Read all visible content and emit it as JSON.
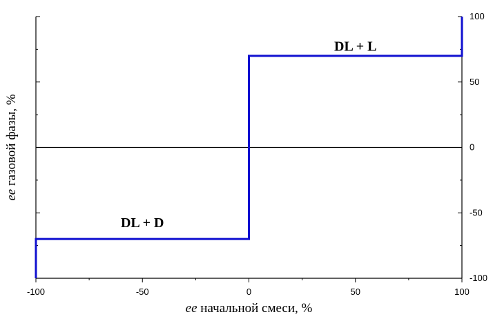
{
  "chart_data": {
    "type": "line",
    "xlabel": {
      "italic": "ee",
      "rest": " начальной смеси, %"
    },
    "ylabel": {
      "italic": "ee",
      "rest": " газовой фазы, %"
    },
    "xlim": [
      -100,
      100
    ],
    "ylim": [
      -100,
      100
    ],
    "x_ticks": [
      "-100",
      "-50",
      "0",
      "50",
      "100"
    ],
    "y_ticks": [
      "-100",
      "-50",
      "0",
      "50",
      "100"
    ],
    "y_axis_side": "right",
    "grid": false,
    "zero_line": true,
    "series": [
      {
        "color": "#1010d0",
        "x": [
          -100,
          -100,
          0,
          0,
          100,
          100
        ],
        "y": [
          -100,
          -70,
          -70,
          70,
          70,
          100
        ]
      }
    ],
    "annotations": [
      {
        "text": "DL + D",
        "x": -50,
        "y": -61
      },
      {
        "text": "DL + L",
        "x": 50,
        "y": 74
      }
    ]
  }
}
